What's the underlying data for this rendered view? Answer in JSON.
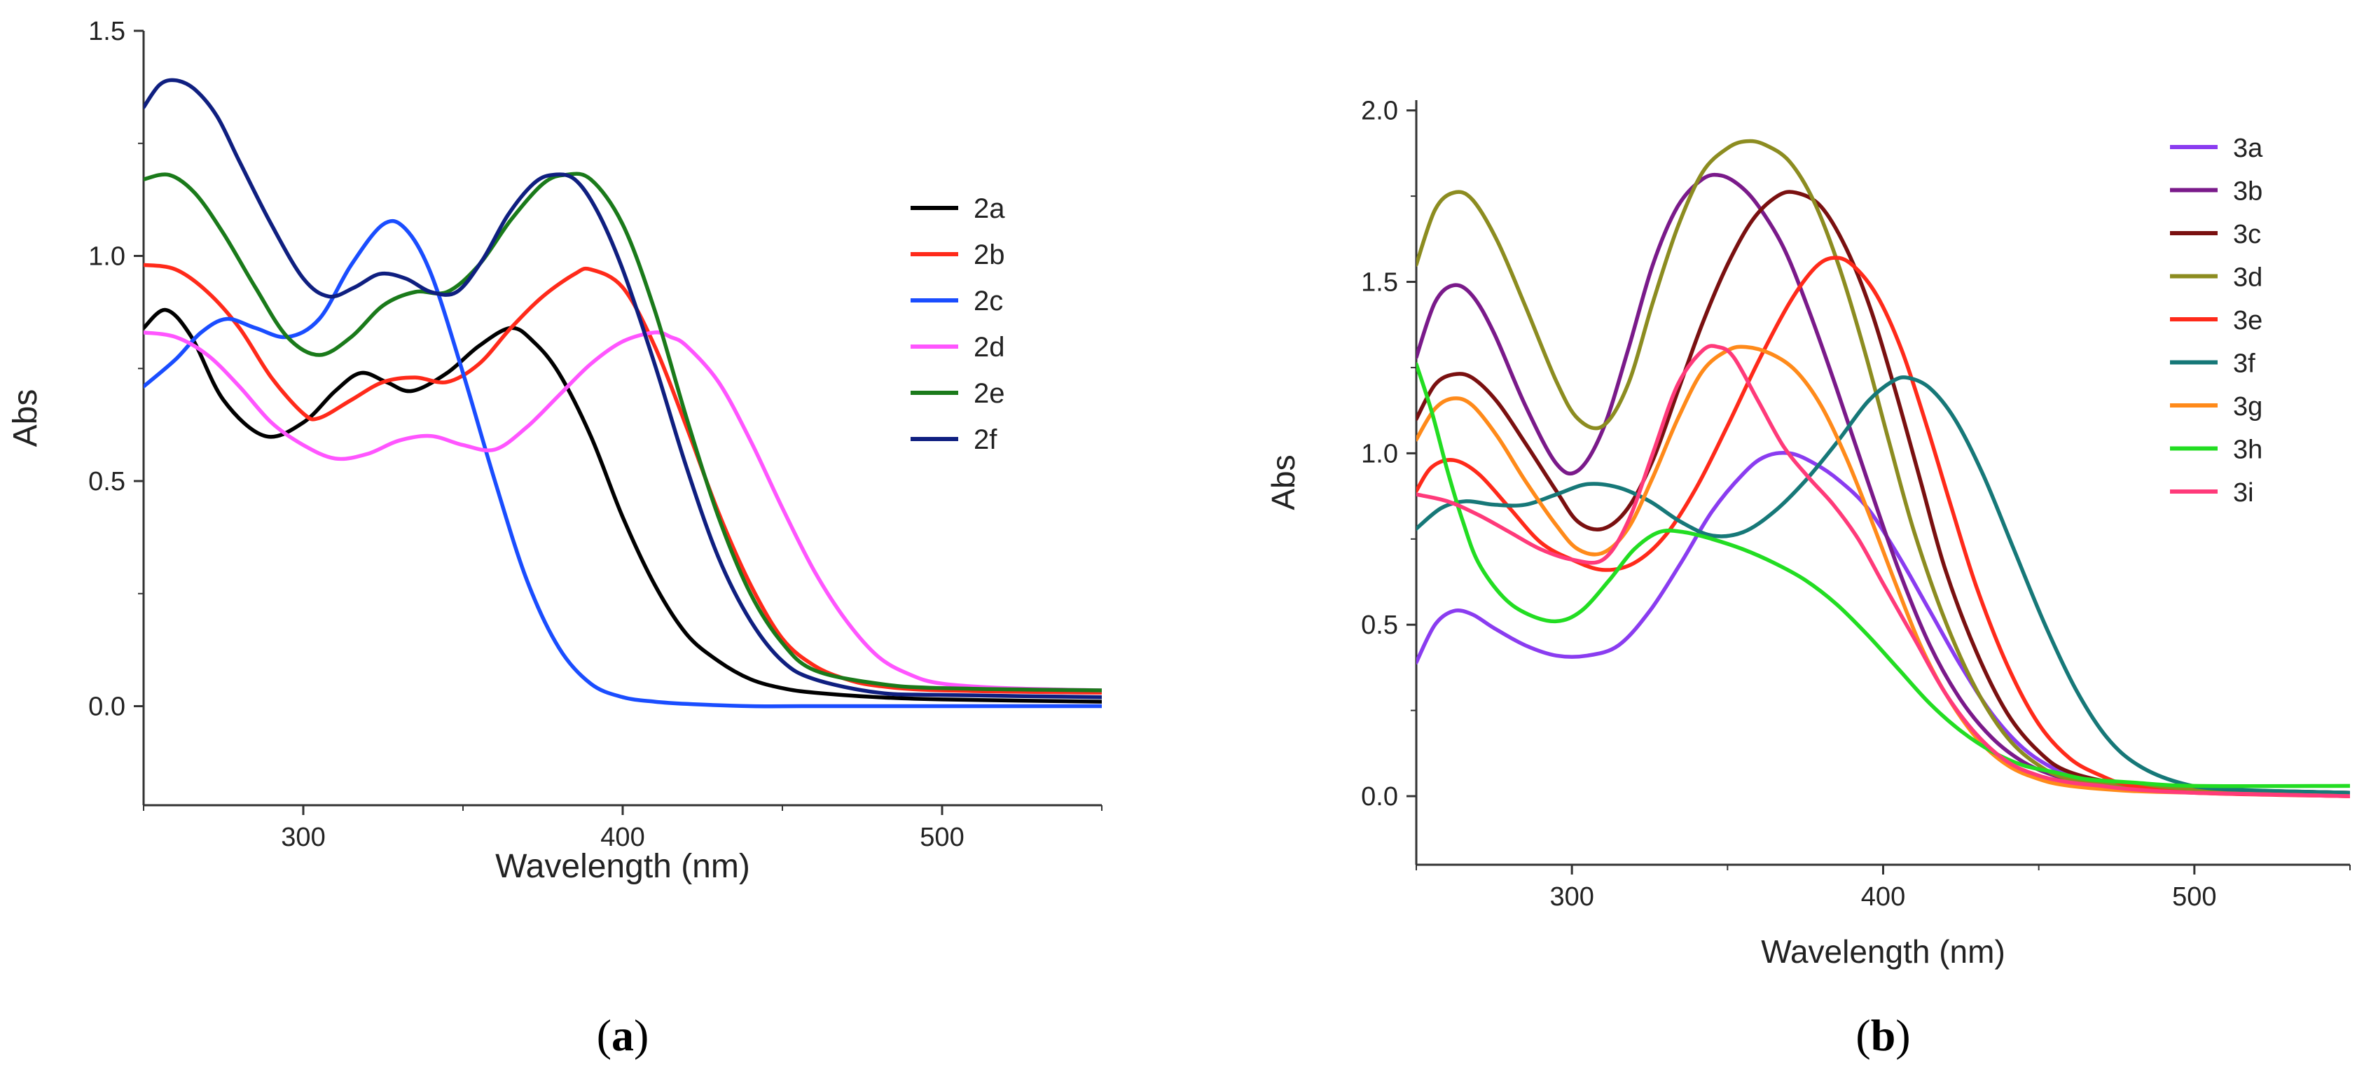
{
  "chart_data": [
    {
      "type": "line",
      "panel_label": "(a)",
      "panel_letter": "a",
      "xlabel": "Wavelength (nm)",
      "ylabel": "Abs",
      "xlim": [
        250,
        550
      ],
      "ylim": [
        -0.22,
        1.5
      ],
      "xticks": [
        300,
        400,
        500
      ],
      "yticks": [
        0.0,
        0.5,
        1.0,
        1.5
      ],
      "ytick_labels": [
        "0.0",
        "0.5",
        "1.0",
        "1.5"
      ],
      "legend_position": "top-right",
      "series": [
        {
          "name": "2a",
          "color": "#000000",
          "x": [
            250,
            257,
            265,
            275,
            288,
            300,
            310,
            318,
            326,
            334,
            345,
            355,
            365,
            372,
            380,
            390,
            400,
            410,
            420,
            430,
            440,
            450,
            460,
            480,
            500,
            550
          ],
          "y": [
            0.84,
            0.88,
            0.82,
            0.68,
            0.6,
            0.63,
            0.7,
            0.74,
            0.72,
            0.7,
            0.74,
            0.8,
            0.84,
            0.81,
            0.74,
            0.6,
            0.42,
            0.27,
            0.16,
            0.1,
            0.06,
            0.04,
            0.03,
            0.02,
            0.015,
            0.01
          ]
        },
        {
          "name": "2b",
          "color": "#ff2a1a",
          "x": [
            250,
            260,
            270,
            280,
            290,
            300,
            305,
            315,
            325,
            335,
            345,
            355,
            365,
            375,
            385,
            390,
            400,
            410,
            420,
            430,
            440,
            450,
            460,
            470,
            480,
            500,
            550
          ],
          "y": [
            0.98,
            0.97,
            0.92,
            0.84,
            0.73,
            0.65,
            0.64,
            0.68,
            0.72,
            0.73,
            0.72,
            0.76,
            0.84,
            0.91,
            0.96,
            0.97,
            0.93,
            0.8,
            0.62,
            0.43,
            0.27,
            0.15,
            0.09,
            0.06,
            0.045,
            0.035,
            0.03
          ]
        },
        {
          "name": "2c",
          "color": "#1a4dff",
          "x": [
            250,
            260,
            268,
            276,
            285,
            295,
            305,
            315,
            325,
            332,
            340,
            350,
            360,
            370,
            380,
            390,
            400,
            410,
            420,
            440,
            460,
            500,
            550
          ],
          "y": [
            0.71,
            0.77,
            0.83,
            0.86,
            0.84,
            0.82,
            0.86,
            0.98,
            1.07,
            1.06,
            0.96,
            0.74,
            0.5,
            0.28,
            0.13,
            0.05,
            0.02,
            0.01,
            0.005,
            0.0,
            0.0,
            0.0,
            0.0
          ]
        },
        {
          "name": "2d",
          "color": "#ff55ff",
          "x": [
            250,
            260,
            270,
            280,
            290,
            300,
            310,
            320,
            330,
            340,
            350,
            360,
            370,
            380,
            390,
            400,
            410,
            415,
            420,
            430,
            440,
            450,
            460,
            470,
            480,
            490,
            500,
            520,
            550
          ],
          "y": [
            0.83,
            0.82,
            0.78,
            0.71,
            0.63,
            0.58,
            0.55,
            0.56,
            0.59,
            0.6,
            0.58,
            0.57,
            0.62,
            0.69,
            0.76,
            0.81,
            0.83,
            0.82,
            0.8,
            0.72,
            0.59,
            0.44,
            0.3,
            0.19,
            0.11,
            0.07,
            0.05,
            0.04,
            0.035
          ]
        },
        {
          "name": "2e",
          "color": "#1a7a1a",
          "x": [
            250,
            258,
            266,
            275,
            285,
            295,
            305,
            315,
            325,
            335,
            345,
            355,
            365,
            375,
            382,
            390,
            400,
            410,
            420,
            430,
            440,
            450,
            460,
            480,
            500,
            550
          ],
          "y": [
            1.17,
            1.18,
            1.14,
            1.05,
            0.93,
            0.82,
            0.78,
            0.82,
            0.89,
            0.92,
            0.92,
            0.98,
            1.08,
            1.16,
            1.18,
            1.17,
            1.07,
            0.88,
            0.64,
            0.42,
            0.25,
            0.14,
            0.08,
            0.05,
            0.04,
            0.035
          ]
        },
        {
          "name": "2f",
          "color": "#0f1f80",
          "x": [
            250,
            255,
            260,
            266,
            273,
            280,
            290,
            300,
            308,
            316,
            324,
            332,
            340,
            348,
            356,
            364,
            372,
            378,
            385,
            392,
            400,
            410,
            420,
            430,
            440,
            450,
            460,
            480,
            500,
            550
          ],
          "y": [
            1.33,
            1.38,
            1.39,
            1.37,
            1.31,
            1.21,
            1.07,
            0.95,
            0.91,
            0.93,
            0.96,
            0.95,
            0.92,
            0.92,
            0.99,
            1.09,
            1.16,
            1.18,
            1.17,
            1.1,
            0.97,
            0.76,
            0.53,
            0.33,
            0.19,
            0.1,
            0.06,
            0.03,
            0.025,
            0.02
          ]
        }
      ]
    },
    {
      "type": "line",
      "panel_label": "(b)",
      "panel_letter": "b",
      "xlabel": "Wavelength (nm)",
      "ylabel": "Abs",
      "xlim": [
        250,
        550
      ],
      "ylim": [
        -0.2,
        2.03
      ],
      "xticks": [
        300,
        400,
        500
      ],
      "yticks": [
        0.0,
        0.5,
        1.0,
        1.5,
        2.0
      ],
      "ytick_labels": [
        "0.0",
        "0.5",
        "1.0",
        "1.5",
        "2.0"
      ],
      "legend_position": "top-right",
      "series": [
        {
          "name": "3a",
          "color": "#8a3cf0",
          "x": [
            250,
            256,
            262,
            268,
            275,
            285,
            295,
            305,
            315,
            325,
            335,
            345,
            355,
            362,
            370,
            378,
            386,
            395,
            405,
            415,
            425,
            435,
            445,
            455,
            465,
            480,
            500,
            550
          ],
          "y": [
            0.39,
            0.5,
            0.54,
            0.53,
            0.49,
            0.44,
            0.41,
            0.41,
            0.44,
            0.54,
            0.68,
            0.83,
            0.94,
            0.99,
            1.0,
            0.97,
            0.92,
            0.84,
            0.7,
            0.54,
            0.38,
            0.24,
            0.14,
            0.08,
            0.05,
            0.03,
            0.02,
            0.01
          ]
        },
        {
          "name": "3b",
          "color": "#7a1a8a",
          "x": [
            250,
            256,
            262,
            268,
            275,
            285,
            295,
            302,
            310,
            318,
            326,
            334,
            342,
            348,
            354,
            360,
            368,
            376,
            385,
            395,
            405,
            415,
            425,
            435,
            445,
            455,
            465,
            480,
            500,
            550
          ],
          "y": [
            1.28,
            1.44,
            1.49,
            1.46,
            1.35,
            1.14,
            0.97,
            0.95,
            1.07,
            1.3,
            1.55,
            1.72,
            1.8,
            1.81,
            1.78,
            1.72,
            1.6,
            1.42,
            1.19,
            0.92,
            0.66,
            0.44,
            0.28,
            0.17,
            0.1,
            0.06,
            0.04,
            0.025,
            0.015,
            0.01
          ]
        },
        {
          "name": "3c",
          "color": "#7a1010",
          "x": [
            250,
            256,
            262,
            268,
            276,
            285,
            295,
            302,
            310,
            318,
            326,
            334,
            342,
            350,
            358,
            366,
            372,
            380,
            388,
            396,
            404,
            412,
            420,
            430,
            440,
            450,
            460,
            480,
            500,
            550
          ],
          "y": [
            1.1,
            1.2,
            1.23,
            1.22,
            1.15,
            1.03,
            0.89,
            0.8,
            0.78,
            0.84,
            0.98,
            1.18,
            1.38,
            1.55,
            1.68,
            1.75,
            1.76,
            1.72,
            1.6,
            1.42,
            1.18,
            0.92,
            0.66,
            0.42,
            0.24,
            0.13,
            0.07,
            0.03,
            0.02,
            0.01
          ]
        },
        {
          "name": "3d",
          "color": "#8c8c20",
          "x": [
            250,
            256,
            262,
            268,
            276,
            285,
            295,
            302,
            310,
            318,
            326,
            334,
            342,
            350,
            356,
            362,
            370,
            378,
            386,
            394,
            402,
            410,
            420,
            430,
            440,
            450,
            460,
            480,
            500,
            550
          ],
          "y": [
            1.55,
            1.71,
            1.76,
            1.74,
            1.62,
            1.43,
            1.21,
            1.1,
            1.08,
            1.2,
            1.44,
            1.66,
            1.82,
            1.89,
            1.91,
            1.9,
            1.85,
            1.73,
            1.54,
            1.3,
            1.03,
            0.77,
            0.51,
            0.31,
            0.17,
            0.09,
            0.05,
            0.03,
            0.02,
            0.01
          ]
        },
        {
          "name": "3e",
          "color": "#ff2a1a",
          "x": [
            250,
            255,
            262,
            270,
            280,
            290,
            300,
            310,
            320,
            330,
            340,
            350,
            360,
            370,
            378,
            384,
            390,
            398,
            406,
            414,
            422,
            430,
            440,
            450,
            460,
            470,
            480,
            500,
            550
          ],
          "y": [
            0.89,
            0.96,
            0.98,
            0.94,
            0.84,
            0.74,
            0.69,
            0.66,
            0.68,
            0.76,
            0.9,
            1.08,
            1.27,
            1.44,
            1.54,
            1.57,
            1.55,
            1.46,
            1.3,
            1.08,
            0.84,
            0.61,
            0.38,
            0.21,
            0.11,
            0.06,
            0.03,
            0.01,
            0.0
          ]
        },
        {
          "name": "3f",
          "color": "#167878",
          "x": [
            250,
            258,
            266,
            275,
            285,
            295,
            305,
            315,
            325,
            335,
            345,
            355,
            365,
            375,
            385,
            395,
            403,
            408,
            415,
            423,
            432,
            442,
            452,
            462,
            472,
            482,
            495,
            510,
            550
          ],
          "y": [
            0.78,
            0.84,
            0.86,
            0.85,
            0.85,
            0.88,
            0.91,
            0.9,
            0.86,
            0.8,
            0.76,
            0.77,
            0.83,
            0.92,
            1.03,
            1.15,
            1.21,
            1.22,
            1.19,
            1.1,
            0.94,
            0.72,
            0.5,
            0.31,
            0.17,
            0.09,
            0.04,
            0.02,
            0.01
          ]
        },
        {
          "name": "3g",
          "color": "#ff8a1a",
          "x": [
            250,
            256,
            262,
            268,
            276,
            285,
            295,
            302,
            310,
            318,
            326,
            334,
            342,
            350,
            356,
            364,
            372,
            380,
            388,
            396,
            404,
            412,
            420,
            430,
            440,
            450,
            460,
            480,
            500,
            550
          ],
          "y": [
            1.04,
            1.13,
            1.16,
            1.14,
            1.05,
            0.92,
            0.79,
            0.72,
            0.71,
            0.78,
            0.93,
            1.1,
            1.24,
            1.3,
            1.31,
            1.29,
            1.24,
            1.14,
            0.99,
            0.81,
            0.62,
            0.44,
            0.3,
            0.17,
            0.09,
            0.05,
            0.03,
            0.015,
            0.01,
            0.0
          ]
        },
        {
          "name": "3h",
          "color": "#22dd22",
          "x": [
            250,
            255,
            260,
            265,
            270,
            278,
            286,
            295,
            303,
            312,
            320,
            328,
            336,
            345,
            355,
            365,
            375,
            385,
            395,
            405,
            415,
            425,
            435,
            445,
            455,
            465,
            480,
            500,
            550
          ],
          "y": [
            1.26,
            1.12,
            0.95,
            0.8,
            0.68,
            0.58,
            0.53,
            0.51,
            0.54,
            0.63,
            0.72,
            0.77,
            0.77,
            0.75,
            0.72,
            0.68,
            0.63,
            0.56,
            0.47,
            0.37,
            0.27,
            0.19,
            0.13,
            0.09,
            0.07,
            0.05,
            0.04,
            0.03,
            0.03
          ]
        },
        {
          "name": "3i",
          "color": "#ff3a7a",
          "x": [
            250,
            260,
            270,
            280,
            290,
            300,
            310,
            318,
            326,
            334,
            342,
            347,
            352,
            360,
            368,
            376,
            384,
            392,
            400,
            410,
            420,
            430,
            440,
            450,
            460,
            470,
            480,
            500,
            550
          ],
          "y": [
            0.88,
            0.86,
            0.82,
            0.77,
            0.72,
            0.69,
            0.69,
            0.8,
            1.0,
            1.2,
            1.3,
            1.31,
            1.28,
            1.15,
            1.02,
            0.93,
            0.85,
            0.75,
            0.62,
            0.46,
            0.3,
            0.18,
            0.1,
            0.06,
            0.04,
            0.03,
            0.02,
            0.01,
            0.0
          ]
        }
      ]
    }
  ]
}
